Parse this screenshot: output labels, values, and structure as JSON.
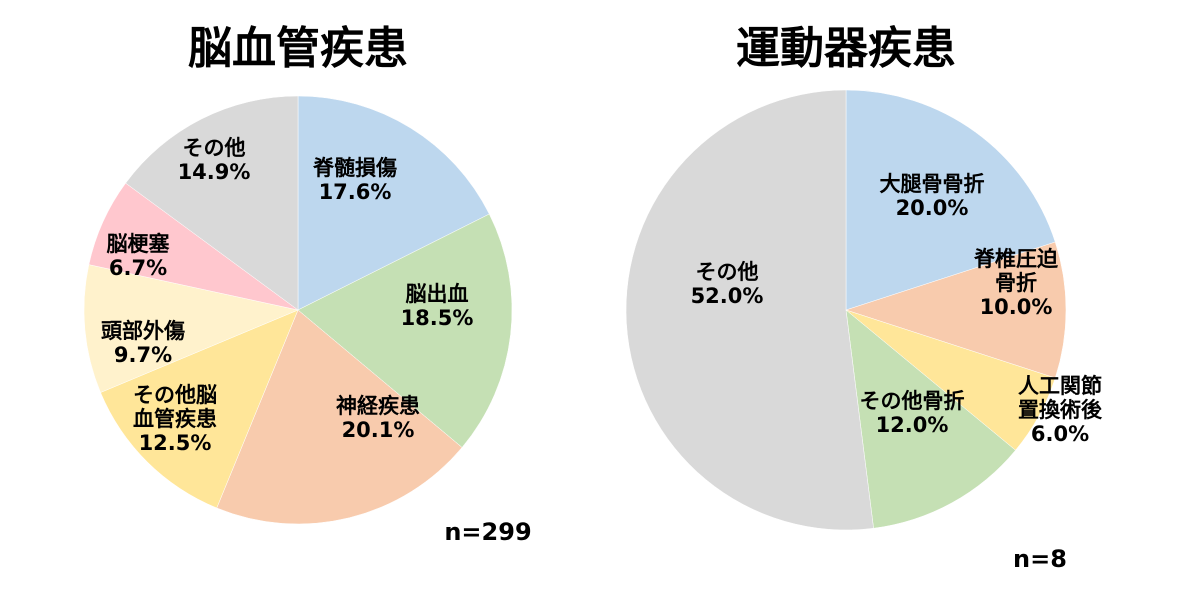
{
  "chart_data": [
    {
      "type": "pie",
      "title": "脳血管疾患",
      "n_label": "n=299",
      "slices": [
        {
          "label_lines": [
            "脊髄損傷"
          ],
          "pct_label": "17.6%",
          "value": 17.6,
          "color": "#bdd7ee"
        },
        {
          "label_lines": [
            "脳出血"
          ],
          "pct_label": "18.5%",
          "value": 18.5,
          "color": "#c5e0b4"
        },
        {
          "label_lines": [
            "神経疾患"
          ],
          "pct_label": "20.1%",
          "value": 20.1,
          "color": "#f8cbad"
        },
        {
          "label_lines": [
            "その他脳",
            "血管疾患"
          ],
          "pct_label": "12.5%",
          "value": 12.5,
          "color": "#ffe699"
        },
        {
          "label_lines": [
            "頭部外傷"
          ],
          "pct_label": "9.7%",
          "value": 9.7,
          "color": "#fff2cc"
        },
        {
          "label_lines": [
            "脳梗塞"
          ],
          "pct_label": "6.7%",
          "value": 6.7,
          "color": "#ffc7ce"
        },
        {
          "label_lines": [
            "その他"
          ],
          "pct_label": "14.9%",
          "value": 14.9,
          "color": "#d9d9d9"
        }
      ]
    },
    {
      "type": "pie",
      "title": "運動器疾患",
      "n_label": "n=8",
      "slices": [
        {
          "label_lines": [
            "大腿骨骨折"
          ],
          "pct_label": "20.0%",
          "value": 20.0,
          "color": "#bdd7ee"
        },
        {
          "label_lines": [
            "脊椎圧迫",
            "骨折"
          ],
          "pct_label": "10.0%",
          "value": 10.0,
          "color": "#f8cbad"
        },
        {
          "label_lines": [
            "人工関節",
            "置換術後"
          ],
          "pct_label": "6.0%",
          "value": 6.0,
          "color": "#ffe699"
        },
        {
          "label_lines": [
            "その他骨折"
          ],
          "pct_label": "12.0%",
          "value": 12.0,
          "color": "#c5e0b4"
        },
        {
          "label_lines": [
            "その他"
          ],
          "pct_label": "52.0%",
          "value": 52.0,
          "color": "#d9d9d9"
        }
      ]
    }
  ]
}
